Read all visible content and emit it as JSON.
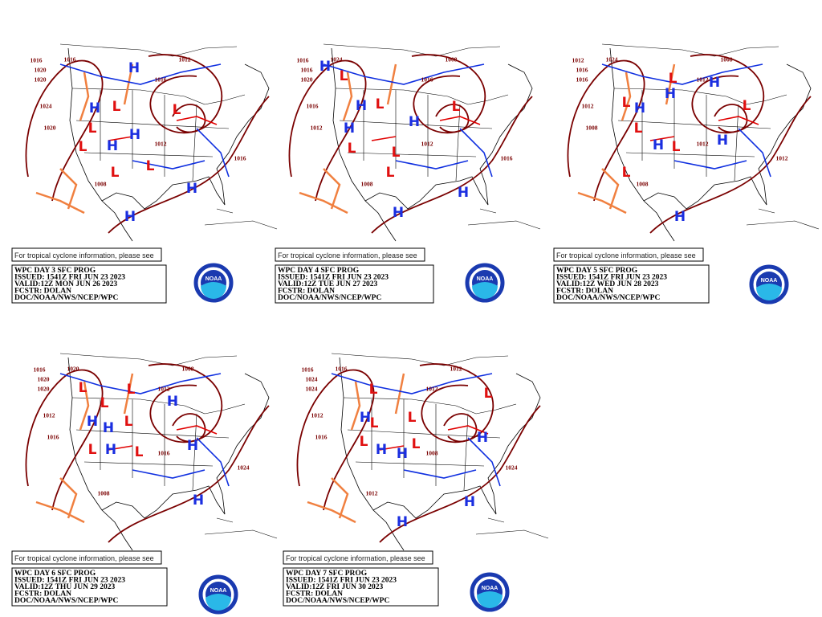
{
  "logo_text": "NOAA",
  "panels": [
    {
      "note": "For tropical cyclone information, please see",
      "title": "WPC DAY 3 SFC PROG",
      "issued": "ISSUED: 1541Z FRI JUN 23 2023",
      "valid": "VALID:12Z MON JUN 26 2023",
      "forecaster": "FCSTR: DOLAN",
      "source": "DOC/NOAA/NWS/NCEP/WPC",
      "highs": [
        "H",
        "H",
        "H",
        "H",
        "H",
        "H"
      ],
      "lows": [
        "L",
        "L",
        "L",
        "L",
        "L",
        "L"
      ],
      "isobars": [
        "1016",
        "1020",
        "1020",
        "1024",
        "1020",
        "1012",
        "1016",
        "1012",
        "1008",
        "1016",
        "1016"
      ]
    },
    {
      "note": "For tropical cyclone information, please see",
      "title": "WPC DAY 4 SFC PROG",
      "issued": "ISSUED: 1541Z FRI JUN 23 2023",
      "valid": "VALID:12Z TUE JUN 27 2023",
      "forecaster": "FCSTR: DOLAN",
      "source": "DOC/NOAA/NWS/NCEP/WPC",
      "highs": [
        "H",
        "H",
        "H",
        "H",
        "H",
        "H"
      ],
      "lows": [
        "L",
        "L",
        "L",
        "L",
        "L",
        "L"
      ],
      "isobars": [
        "1016",
        "1016",
        "1020",
        "1016",
        "1012",
        "1008",
        "1016",
        "1012",
        "1008",
        "1016",
        "1024"
      ]
    },
    {
      "note": "For tropical cyclone information, please see",
      "title": "WPC DAY 5 SFC PROG",
      "issued": "ISSUED: 1541Z FRI JUN 23 2023",
      "valid": "VALID:12Z WED JUN 28 2023",
      "forecaster": "FCSTR: DOLAN",
      "source": "DOC/NOAA/NWS/NCEP/WPC",
      "highs": [
        "H",
        "H",
        "H",
        "H",
        "H",
        "H"
      ],
      "lows": [
        "L",
        "L",
        "L",
        "L",
        "L",
        "L"
      ],
      "isobars": [
        "1012",
        "1016",
        "1016",
        "1012",
        "1008",
        "1008",
        "1012",
        "1012",
        "1008",
        "1012",
        "1024"
      ]
    },
    {
      "note": "For tropical cyclone information, please see",
      "title": "WPC DAY 6 SFC PROG",
      "issued": "ISSUED: 1541Z FRI JUN 23 2023",
      "valid": "VALID:12Z THU JUN 29 2023",
      "forecaster": "FCSTR: DOLAN",
      "source": "DOC/NOAA/NWS/NCEP/WPC",
      "highs": [
        "H",
        "H",
        "H",
        "H",
        "H",
        "H"
      ],
      "lows": [
        "L",
        "L",
        "L",
        "L",
        "L",
        "L"
      ],
      "isobars": [
        "1016",
        "1020",
        "1020",
        "1012",
        "1016",
        "1008",
        "1012",
        "1016",
        "1008",
        "1024",
        "1020"
      ]
    },
    {
      "note": "For tropical cyclone information, please see",
      "title": "WPC DAY 7 SFC PROG",
      "issued": "ISSUED: 1541Z FRI JUN 23 2023",
      "valid": "VALID:12Z FRI JUN 30 2023",
      "forecaster": "FCSTR: DOLAN",
      "source": "DOC/NOAA/NWS/NCEP/WPC",
      "highs": [
        "H",
        "H",
        "H",
        "H",
        "H",
        "H"
      ],
      "lows": [
        "L",
        "L",
        "L",
        "L",
        "L",
        "L"
      ],
      "isobars": [
        "1016",
        "1024",
        "1024",
        "1012",
        "1016",
        "1012",
        "1012",
        "1008",
        "1012",
        "1024",
        "1016"
      ]
    }
  ]
}
